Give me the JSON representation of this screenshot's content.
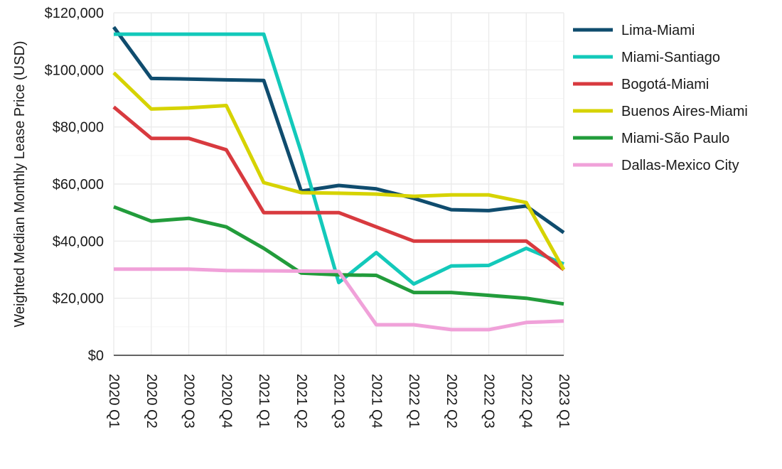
{
  "chart_data": {
    "type": "line",
    "title": "",
    "xlabel": "",
    "ylabel": "Weighted Median Monthly Lease Price (USD)",
    "ylim": [
      0,
      120000
    ],
    "yticks": [
      0,
      20000,
      40000,
      60000,
      80000,
      100000,
      120000
    ],
    "ytick_labels": [
      "$0",
      "$20,000",
      "$40,000",
      "$60,000",
      "$80,000",
      "$100,000",
      "$120,000"
    ],
    "categories": [
      "2020 Q1",
      "2020 Q2",
      "2020 Q3",
      "2020 Q4",
      "2021 Q1",
      "2021 Q2",
      "2021 Q3",
      "2021 Q4",
      "2022 Q1",
      "2022 Q2",
      "2022 Q3",
      "2022 Q4",
      "2023 Q1"
    ],
    "grid": true,
    "legend_position": "right",
    "series": [
      {
        "name": "Lima-Miami",
        "color": "#0f4c6e",
        "values": [
          115000,
          97000,
          96800,
          96500,
          96300,
          57500,
          59500,
          58300,
          55000,
          51000,
          50700,
          52300,
          43000
        ]
      },
      {
        "name": "Miami-Santiago",
        "color": "#13c9ba",
        "values": [
          112500,
          112500,
          112500,
          112500,
          112500,
          71000,
          25500,
          36000,
          25000,
          31300,
          31500,
          37500,
          32000
        ]
      },
      {
        "name": "Bogotá-Miami",
        "color": "#d83a3f",
        "values": [
          87000,
          76000,
          76000,
          72000,
          50000,
          50000,
          50000,
          45000,
          40000,
          40000,
          40000,
          40000,
          30000
        ]
      },
      {
        "name": "Buenos Aires-Miami",
        "color": "#d6d300",
        "values": [
          99000,
          86300,
          86700,
          87500,
          60500,
          57000,
          56800,
          56500,
          55700,
          56200,
          56200,
          53500,
          30000
        ]
      },
      {
        "name": "Miami-São Paulo",
        "color": "#229c3b",
        "values": [
          52000,
          47000,
          48000,
          45000,
          37500,
          28800,
          28200,
          28000,
          22000,
          22000,
          21000,
          20000,
          18000
        ]
      },
      {
        "name": "Dallas-Mexico City",
        "color": "#f0a1d9",
        "values": [
          30200,
          30200,
          30200,
          29700,
          29600,
          29500,
          29400,
          10700,
          10700,
          9000,
          9000,
          11500,
          12000
        ]
      }
    ]
  }
}
